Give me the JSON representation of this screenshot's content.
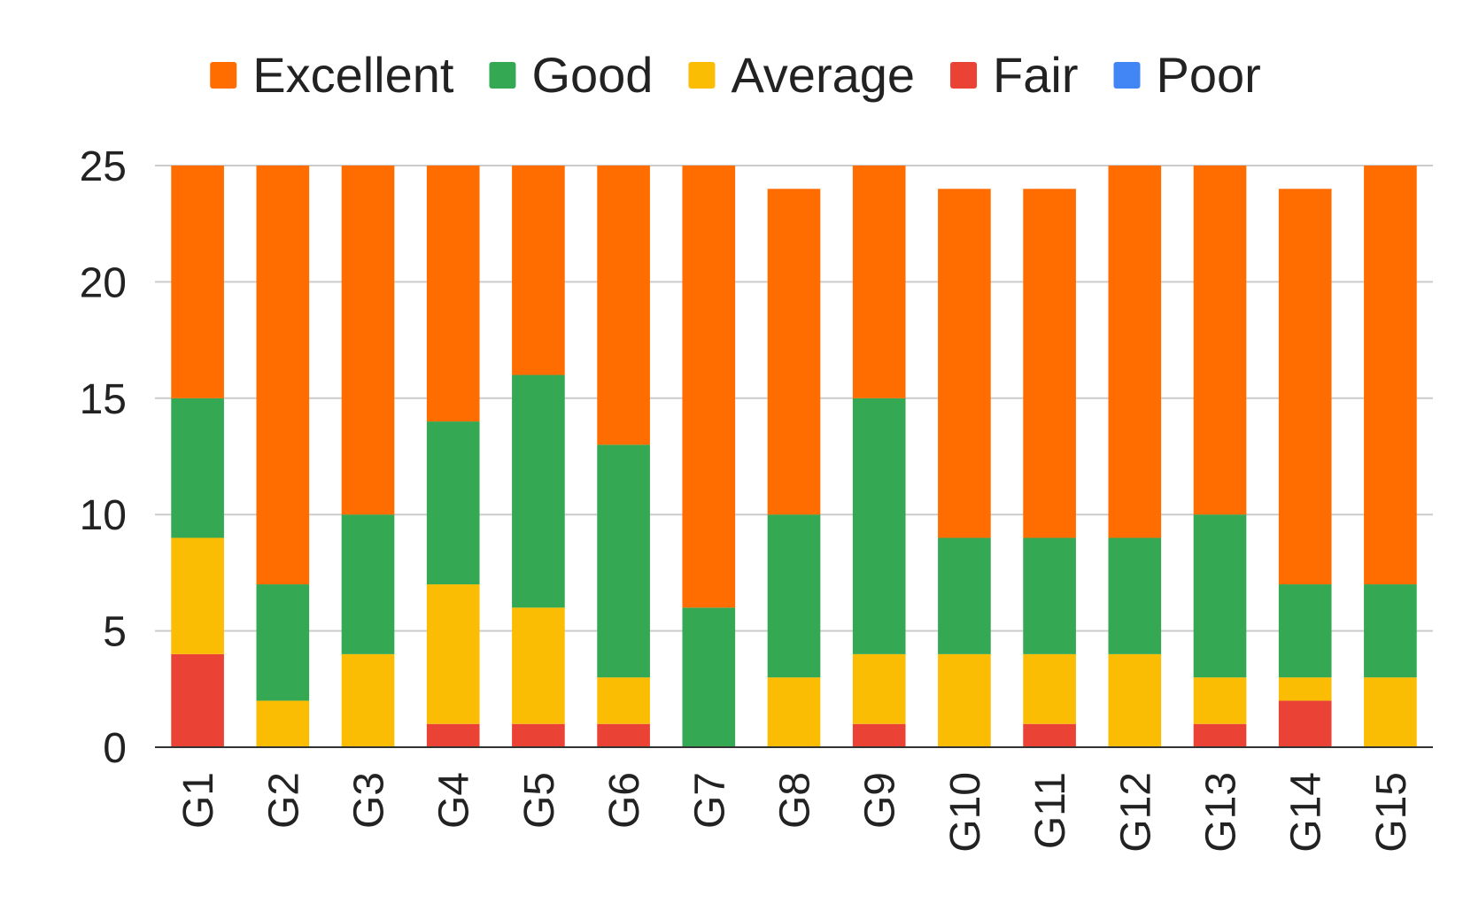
{
  "chart_data": {
    "type": "bar",
    "stacked": true,
    "categories": [
      "G1",
      "G2",
      "G3",
      "G4",
      "G5",
      "G6",
      "G7",
      "G8",
      "G9",
      "G10",
      "G11",
      "G12",
      "G13",
      "G14",
      "G15"
    ],
    "series": [
      {
        "name": "Excellent",
        "color": "#ff6d01",
        "values": [
          10,
          18,
          15,
          11,
          9,
          12,
          19,
          14,
          10,
          15,
          15,
          16,
          15,
          17,
          18
        ]
      },
      {
        "name": "Good",
        "color": "#34a853",
        "values": [
          6,
          5,
          6,
          7,
          10,
          10,
          6,
          7,
          11,
          5,
          5,
          5,
          7,
          4,
          4
        ]
      },
      {
        "name": "Average",
        "color": "#fbbc04",
        "values": [
          5,
          2,
          4,
          6,
          5,
          2,
          0,
          3,
          3,
          4,
          3,
          4,
          2,
          1,
          3
        ]
      },
      {
        "name": "Fair",
        "color": "#ea4335",
        "values": [
          4,
          0,
          0,
          1,
          1,
          1,
          0,
          0,
          1,
          0,
          1,
          0,
          1,
          2,
          0
        ]
      },
      {
        "name": "Poor",
        "color": "#4285f4",
        "values": [
          0,
          0,
          0,
          0,
          0,
          0,
          0,
          0,
          0,
          0,
          0,
          0,
          0,
          0,
          0
        ]
      }
    ],
    "stack_order_bottom_to_top": [
      "Poor",
      "Fair",
      "Average",
      "Good",
      "Excellent"
    ],
    "yticks": [
      0,
      5,
      10,
      15,
      20,
      25
    ],
    "ylim": [
      0,
      25
    ],
    "title": "",
    "xlabel": "",
    "ylabel": "",
    "legend_position": "top",
    "grid": true,
    "x_tick_label_orientation": "rotated vertical"
  }
}
